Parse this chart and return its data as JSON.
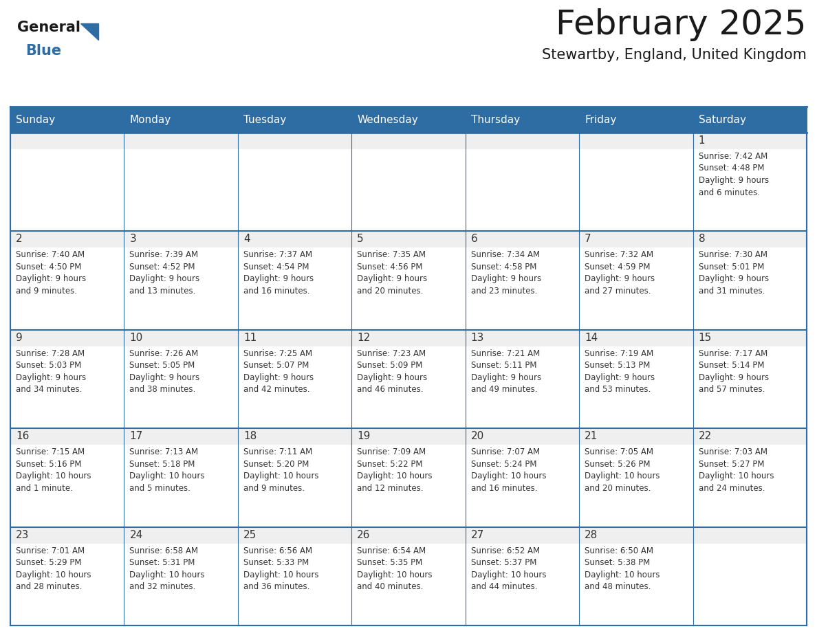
{
  "title": "February 2025",
  "subtitle": "Stewartby, England, United Kingdom",
  "header_color": "#2E6DA4",
  "header_text_color": "#FFFFFF",
  "cell_top_bg": "#EFEFEF",
  "cell_body_bg": "#FFFFFF",
  "day_number_color": "#333333",
  "text_color": "#333333",
  "border_color": "#2E6DA4",
  "line_color": "#AAAAAA",
  "days_of_week": [
    "Sunday",
    "Monday",
    "Tuesday",
    "Wednesday",
    "Thursday",
    "Friday",
    "Saturday"
  ],
  "weeks": [
    [
      {
        "day": "",
        "info": ""
      },
      {
        "day": "",
        "info": ""
      },
      {
        "day": "",
        "info": ""
      },
      {
        "day": "",
        "info": ""
      },
      {
        "day": "",
        "info": ""
      },
      {
        "day": "",
        "info": ""
      },
      {
        "day": "1",
        "info": "Sunrise: 7:42 AM\nSunset: 4:48 PM\nDaylight: 9 hours\nand 6 minutes."
      }
    ],
    [
      {
        "day": "2",
        "info": "Sunrise: 7:40 AM\nSunset: 4:50 PM\nDaylight: 9 hours\nand 9 minutes."
      },
      {
        "day": "3",
        "info": "Sunrise: 7:39 AM\nSunset: 4:52 PM\nDaylight: 9 hours\nand 13 minutes."
      },
      {
        "day": "4",
        "info": "Sunrise: 7:37 AM\nSunset: 4:54 PM\nDaylight: 9 hours\nand 16 minutes."
      },
      {
        "day": "5",
        "info": "Sunrise: 7:35 AM\nSunset: 4:56 PM\nDaylight: 9 hours\nand 20 minutes."
      },
      {
        "day": "6",
        "info": "Sunrise: 7:34 AM\nSunset: 4:58 PM\nDaylight: 9 hours\nand 23 minutes."
      },
      {
        "day": "7",
        "info": "Sunrise: 7:32 AM\nSunset: 4:59 PM\nDaylight: 9 hours\nand 27 minutes."
      },
      {
        "day": "8",
        "info": "Sunrise: 7:30 AM\nSunset: 5:01 PM\nDaylight: 9 hours\nand 31 minutes."
      }
    ],
    [
      {
        "day": "9",
        "info": "Sunrise: 7:28 AM\nSunset: 5:03 PM\nDaylight: 9 hours\nand 34 minutes."
      },
      {
        "day": "10",
        "info": "Sunrise: 7:26 AM\nSunset: 5:05 PM\nDaylight: 9 hours\nand 38 minutes."
      },
      {
        "day": "11",
        "info": "Sunrise: 7:25 AM\nSunset: 5:07 PM\nDaylight: 9 hours\nand 42 minutes."
      },
      {
        "day": "12",
        "info": "Sunrise: 7:23 AM\nSunset: 5:09 PM\nDaylight: 9 hours\nand 46 minutes."
      },
      {
        "day": "13",
        "info": "Sunrise: 7:21 AM\nSunset: 5:11 PM\nDaylight: 9 hours\nand 49 minutes."
      },
      {
        "day": "14",
        "info": "Sunrise: 7:19 AM\nSunset: 5:13 PM\nDaylight: 9 hours\nand 53 minutes."
      },
      {
        "day": "15",
        "info": "Sunrise: 7:17 AM\nSunset: 5:14 PM\nDaylight: 9 hours\nand 57 minutes."
      }
    ],
    [
      {
        "day": "16",
        "info": "Sunrise: 7:15 AM\nSunset: 5:16 PM\nDaylight: 10 hours\nand 1 minute."
      },
      {
        "day": "17",
        "info": "Sunrise: 7:13 AM\nSunset: 5:18 PM\nDaylight: 10 hours\nand 5 minutes."
      },
      {
        "day": "18",
        "info": "Sunrise: 7:11 AM\nSunset: 5:20 PM\nDaylight: 10 hours\nand 9 minutes."
      },
      {
        "day": "19",
        "info": "Sunrise: 7:09 AM\nSunset: 5:22 PM\nDaylight: 10 hours\nand 12 minutes."
      },
      {
        "day": "20",
        "info": "Sunrise: 7:07 AM\nSunset: 5:24 PM\nDaylight: 10 hours\nand 16 minutes."
      },
      {
        "day": "21",
        "info": "Sunrise: 7:05 AM\nSunset: 5:26 PM\nDaylight: 10 hours\nand 20 minutes."
      },
      {
        "day": "22",
        "info": "Sunrise: 7:03 AM\nSunset: 5:27 PM\nDaylight: 10 hours\nand 24 minutes."
      }
    ],
    [
      {
        "day": "23",
        "info": "Sunrise: 7:01 AM\nSunset: 5:29 PM\nDaylight: 10 hours\nand 28 minutes."
      },
      {
        "day": "24",
        "info": "Sunrise: 6:58 AM\nSunset: 5:31 PM\nDaylight: 10 hours\nand 32 minutes."
      },
      {
        "day": "25",
        "info": "Sunrise: 6:56 AM\nSunset: 5:33 PM\nDaylight: 10 hours\nand 36 minutes."
      },
      {
        "day": "26",
        "info": "Sunrise: 6:54 AM\nSunset: 5:35 PM\nDaylight: 10 hours\nand 40 minutes."
      },
      {
        "day": "27",
        "info": "Sunrise: 6:52 AM\nSunset: 5:37 PM\nDaylight: 10 hours\nand 44 minutes."
      },
      {
        "day": "28",
        "info": "Sunrise: 6:50 AM\nSunset: 5:38 PM\nDaylight: 10 hours\nand 48 minutes."
      },
      {
        "day": "",
        "info": ""
      }
    ]
  ],
  "logo_text_general": "General",
  "logo_text_blue": "Blue",
  "logo_general_color": "#1a1a1a",
  "logo_blue_color": "#2E6DA4",
  "fig_width": 11.88,
  "fig_height": 9.18,
  "dpi": 100
}
